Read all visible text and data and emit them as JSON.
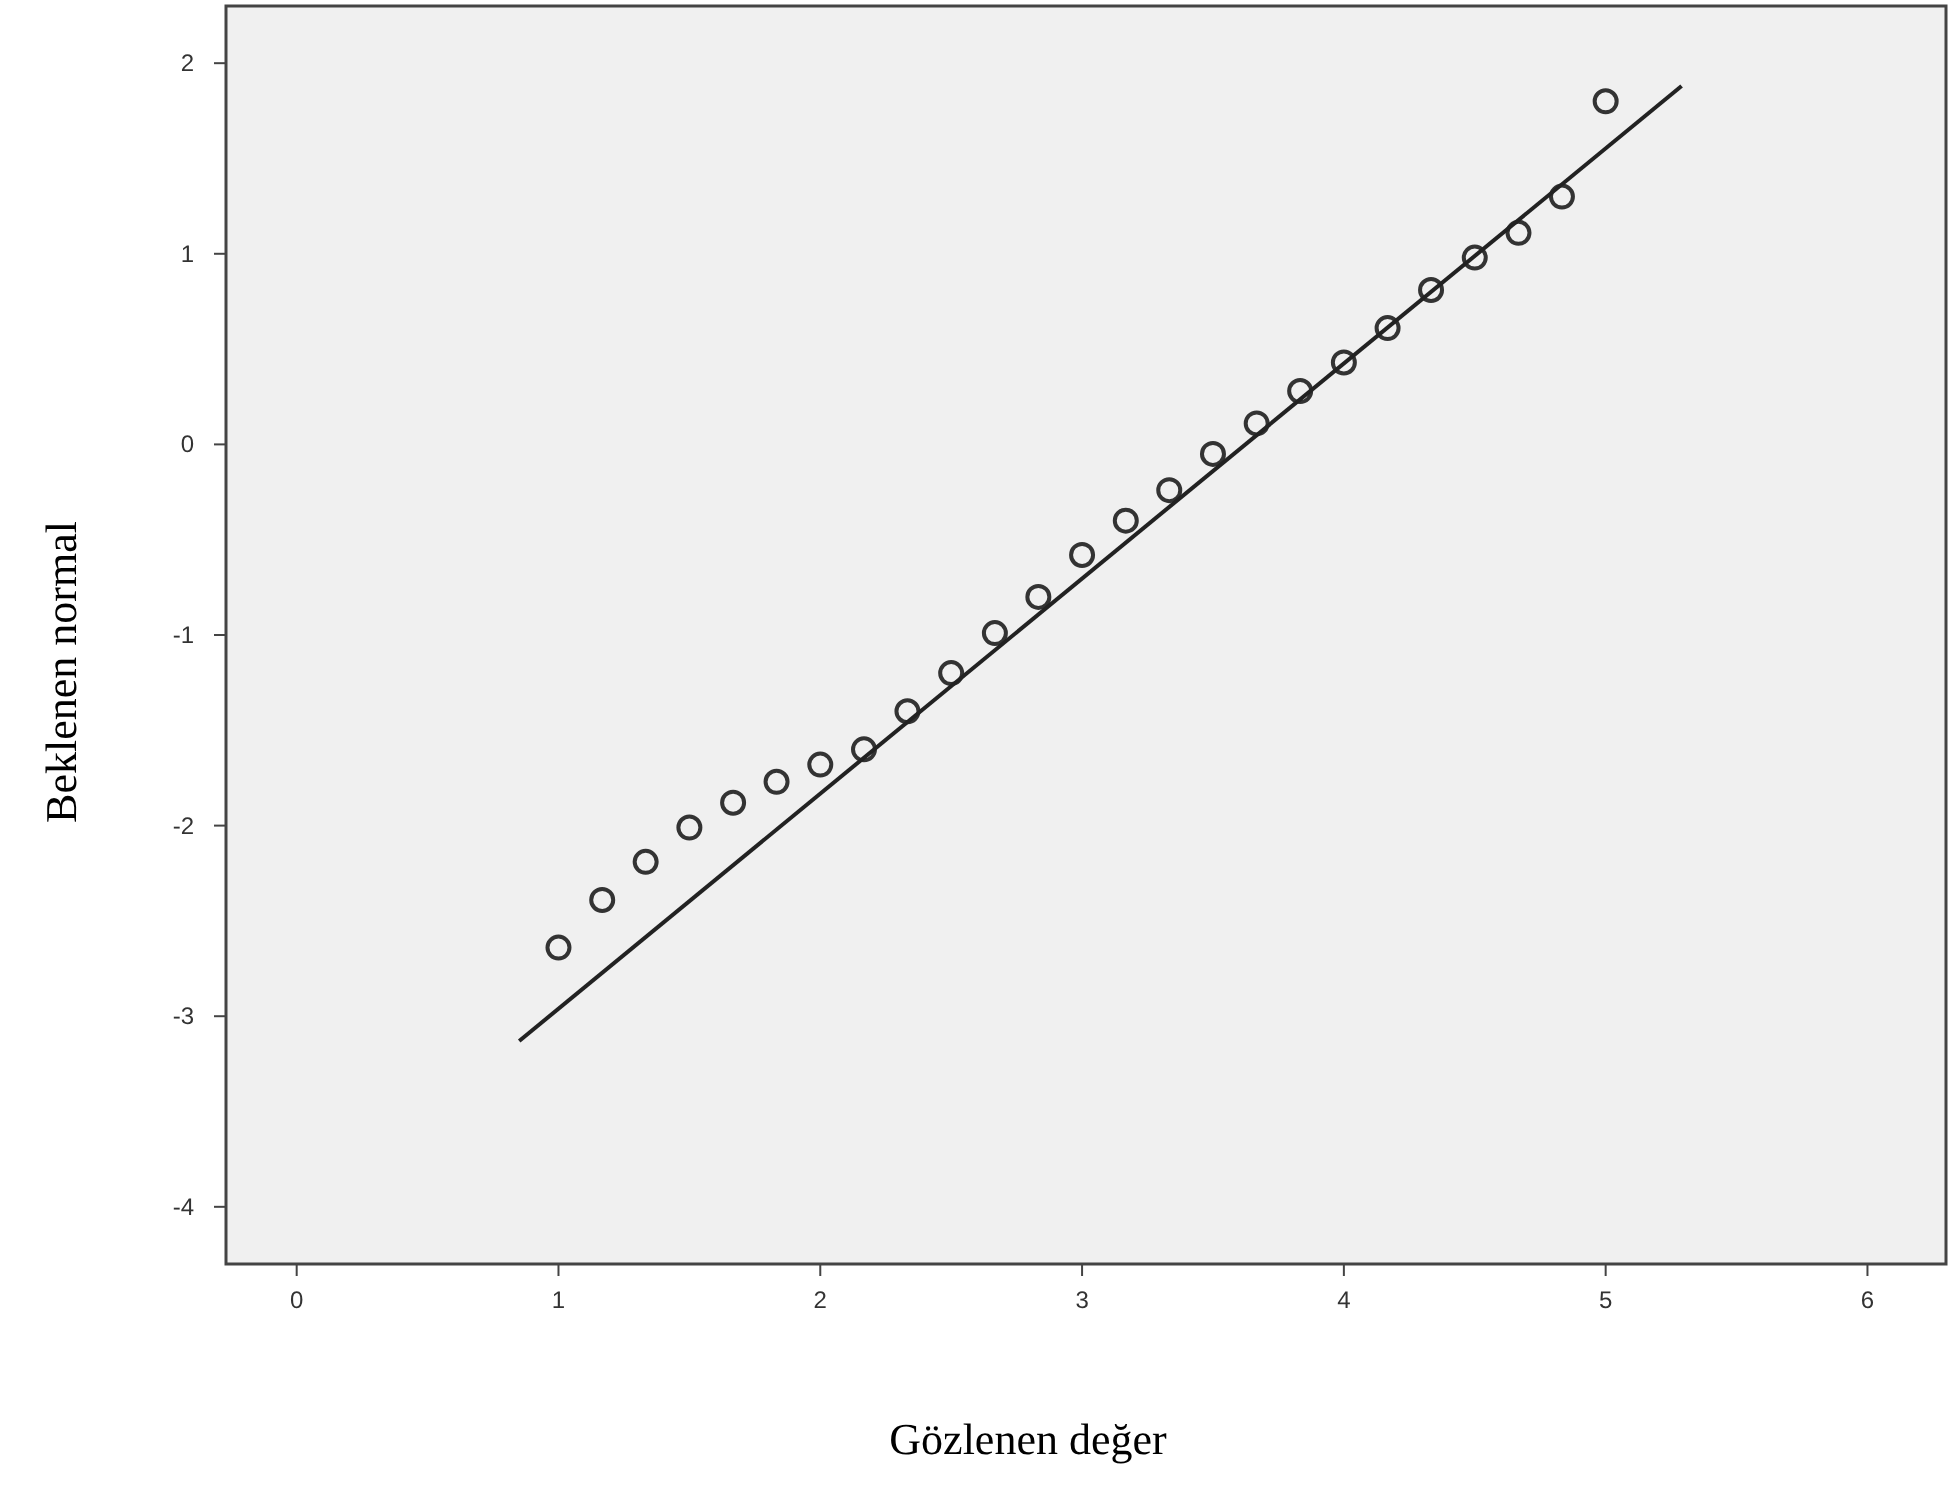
{
  "chart_data": {
    "type": "scatter",
    "xlabel": "Gözlenen değer",
    "ylabel": "Beklenen normal",
    "xlim": [
      -0.27,
      6.3
    ],
    "ylim": [
      -4.3,
      2.3
    ],
    "xticks": [
      0,
      1,
      2,
      3,
      4,
      5,
      6
    ],
    "yticks": [
      -4,
      -3,
      -2,
      -1,
      0,
      1,
      2
    ],
    "grid": false,
    "marker": "circle",
    "series": [
      {
        "color": "#333333",
        "x": [
          1,
          1.167,
          1.333,
          1.5,
          1.667,
          1.833,
          2,
          2.167,
          2.333,
          2.5,
          2.667,
          2.833,
          3,
          3.167,
          3.333,
          3.5,
          3.667,
          3.833,
          4,
          4.167,
          4.333,
          4.5,
          4.667,
          4.833,
          5
        ],
        "values": [
          -2.64,
          -2.39,
          -2.19,
          -2.01,
          -1.88,
          -1.77,
          -1.68,
          -1.6,
          -1.4,
          -1.2,
          -0.99,
          -0.8,
          -0.58,
          -0.4,
          -0.24,
          -0.05,
          0.11,
          0.28,
          0.43,
          0.61,
          0.81,
          0.98,
          1.11,
          1.3,
          1.8
        ]
      },
      {
        "type": "line",
        "color": "#222222",
        "marker": "none",
        "line_style": "solid",
        "x": [
          0.85,
          5.29
        ],
        "values": [
          -3.13,
          1.88
        ]
      }
    ]
  }
}
